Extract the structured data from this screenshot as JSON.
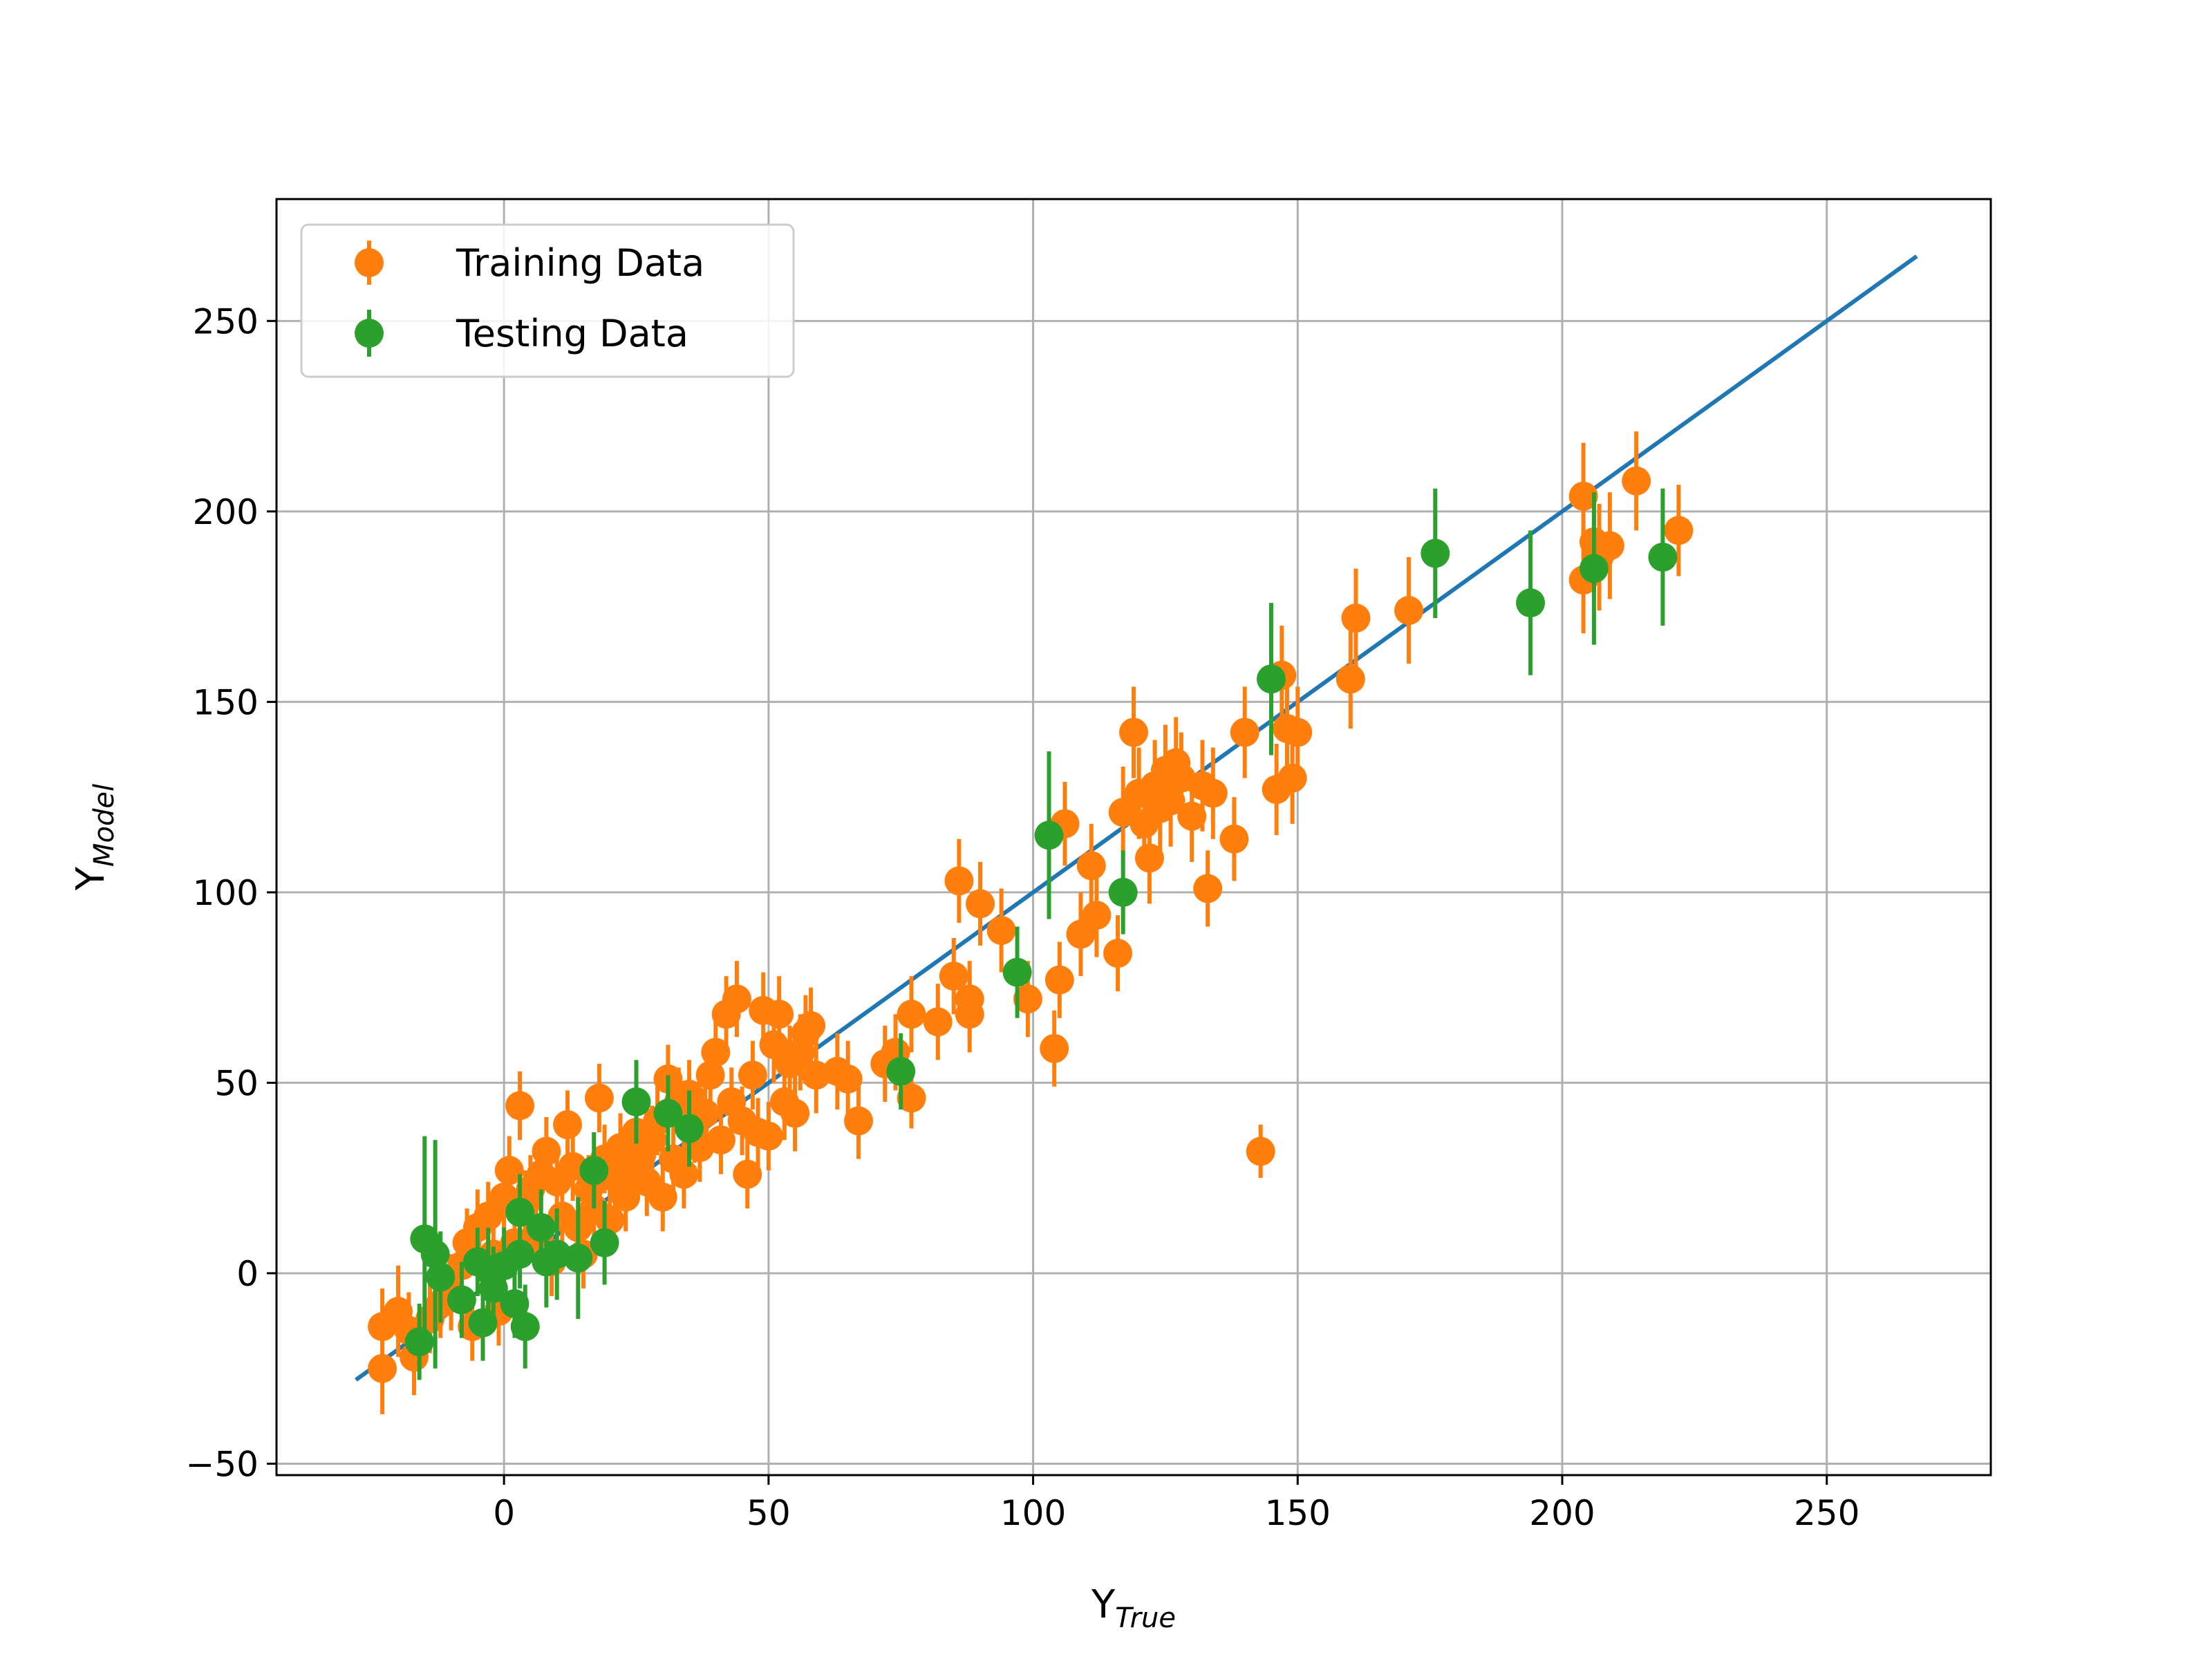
{
  "chart_data": {
    "type": "scatter",
    "title": "",
    "xlabel": {
      "base": "Y",
      "sub": "True"
    },
    "ylabel": {
      "base": "Y",
      "sub": "Model"
    },
    "xlim": [
      -43,
      281
    ],
    "ylim": [
      -53,
      282
    ],
    "xticks": [
      0,
      50,
      100,
      150,
      200,
      250
    ],
    "yticks": [
      -50,
      0,
      50,
      100,
      150,
      200,
      250
    ],
    "xtick_labels": [
      "0",
      "50",
      "100",
      "150",
      "200",
      "250"
    ],
    "ytick_labels": [
      "−50",
      "0",
      "50",
      "100",
      "150",
      "200",
      "250"
    ],
    "grid": true,
    "legend": {
      "placement": "top-left",
      "entries": [
        "Training Data",
        "Testing Data"
      ]
    },
    "reference_line": {
      "x": [
        -28,
        267
      ],
      "y": [
        -28,
        267
      ],
      "color": "#1f77b4"
    },
    "series": [
      {
        "name": "Training Data",
        "color": "#ff7f0e",
        "points": [
          [
            -23,
            -25,
            12
          ],
          [
            -23,
            -14,
            10
          ],
          [
            -20,
            -10,
            12
          ],
          [
            -18,
            -15,
            10
          ],
          [
            -17,
            -22,
            10
          ],
          [
            -14,
            -12,
            9
          ],
          [
            -12,
            -8,
            9
          ],
          [
            -10,
            -5,
            10
          ],
          [
            -8,
            2,
            9
          ],
          [
            -7,
            8,
            9
          ],
          [
            -6,
            -14,
            9
          ],
          [
            -5,
            12,
            10
          ],
          [
            -3,
            15,
            9
          ],
          [
            -2,
            5,
            9
          ],
          [
            -1,
            -10,
            9
          ],
          [
            0,
            20,
            9
          ],
          [
            1,
            27,
            9
          ],
          [
            2,
            8,
            9
          ],
          [
            3,
            44,
            9
          ],
          [
            4,
            18,
            9
          ],
          [
            5,
            22,
            9
          ],
          [
            6,
            10,
            9
          ],
          [
            7,
            26,
            9
          ],
          [
            8,
            32,
            9
          ],
          [
            9,
            3,
            9
          ],
          [
            10,
            24,
            9
          ],
          [
            11,
            15,
            9
          ],
          [
            12,
            39,
            9
          ],
          [
            13,
            28,
            9
          ],
          [
            14,
            12,
            9
          ],
          [
            15,
            5,
            9
          ],
          [
            16,
            22,
            9
          ],
          [
            17,
            17,
            9
          ],
          [
            18,
            46,
            9
          ],
          [
            19,
            30,
            9
          ],
          [
            20,
            14,
            9
          ],
          [
            21,
            25,
            9
          ],
          [
            22,
            33,
            9
          ],
          [
            23,
            20,
            9
          ],
          [
            24,
            28,
            9
          ],
          [
            25,
            37,
            9
          ],
          [
            26,
            31,
            9
          ],
          [
            27,
            24,
            9
          ],
          [
            28,
            35,
            9
          ],
          [
            29,
            40,
            9
          ],
          [
            30,
            20,
            9
          ],
          [
            31,
            51,
            9
          ],
          [
            32,
            30,
            9
          ],
          [
            33,
            45,
            9
          ],
          [
            34,
            26,
            9
          ],
          [
            35,
            47,
            9
          ],
          [
            36,
            38,
            9
          ],
          [
            37,
            33,
            9
          ],
          [
            38,
            42,
            9
          ],
          [
            39,
            52,
            9
          ],
          [
            40,
            58,
            9
          ],
          [
            41,
            35,
            9
          ],
          [
            42,
            68,
            10
          ],
          [
            43,
            45,
            9
          ],
          [
            44,
            72,
            10
          ],
          [
            45,
            40,
            9
          ],
          [
            46,
            26,
            9
          ],
          [
            47,
            52,
            9
          ],
          [
            48,
            37,
            9
          ],
          [
            49,
            69,
            10
          ],
          [
            50,
            36,
            9
          ],
          [
            51,
            60,
            10
          ],
          [
            52,
            68,
            10
          ],
          [
            53,
            45,
            10
          ],
          [
            54,
            55,
            10
          ],
          [
            55,
            42,
            10
          ],
          [
            56,
            58,
            10
          ],
          [
            57,
            63,
            10
          ],
          [
            58,
            65,
            10
          ],
          [
            59,
            52,
            10
          ],
          [
            63,
            53,
            10
          ],
          [
            65,
            51,
            10
          ],
          [
            67,
            40,
            10
          ],
          [
            72,
            55,
            10
          ],
          [
            74,
            58,
            10
          ],
          [
            77,
            68,
            10
          ],
          [
            77,
            46,
            8
          ],
          [
            82,
            66,
            10
          ],
          [
            85,
            78,
            10
          ],
          [
            86,
            103,
            11
          ],
          [
            88,
            72,
            10
          ],
          [
            88,
            68,
            10
          ],
          [
            90,
            97,
            11
          ],
          [
            94,
            90,
            11
          ],
          [
            99,
            72,
            10
          ],
          [
            104,
            59,
            10
          ],
          [
            105,
            77,
            10
          ],
          [
            106,
            118,
            11
          ],
          [
            109,
            89,
            11
          ],
          [
            111,
            107,
            11
          ],
          [
            112,
            94,
            11
          ],
          [
            116,
            84,
            10
          ],
          [
            117,
            121,
            12
          ],
          [
            119,
            142,
            12
          ],
          [
            120,
            126,
            12
          ],
          [
            121,
            118,
            12
          ],
          [
            122,
            109,
            12
          ],
          [
            123,
            128,
            12
          ],
          [
            124,
            122,
            12
          ],
          [
            125,
            132,
            12
          ],
          [
            126,
            124,
            12
          ],
          [
            127,
            134,
            12
          ],
          [
            128,
            130,
            12
          ],
          [
            130,
            120,
            12
          ],
          [
            132,
            128,
            12
          ],
          [
            133,
            101,
            10
          ],
          [
            134,
            126,
            12
          ],
          [
            138,
            114,
            11
          ],
          [
            140,
            142,
            12
          ],
          [
            143,
            32,
            7
          ],
          [
            146,
            127,
            12
          ],
          [
            147,
            157,
            13
          ],
          [
            148,
            143,
            12
          ],
          [
            149,
            130,
            12
          ],
          [
            150,
            142,
            12
          ],
          [
            160,
            156,
            13
          ],
          [
            161,
            172,
            13
          ],
          [
            171,
            174,
            14
          ],
          [
            204,
            182,
            14
          ],
          [
            204,
            204,
            14
          ],
          [
            206,
            192,
            14
          ],
          [
            207,
            188,
            14
          ],
          [
            209,
            191,
            14
          ],
          [
            214,
            208,
            13
          ],
          [
            222,
            195,
            12
          ]
        ]
      },
      {
        "name": "Testing Data",
        "color": "#2ca02c",
        "points": [
          [
            -16,
            -18,
            10
          ],
          [
            -15,
            9,
            27
          ],
          [
            -13,
            5,
            30
          ],
          [
            -12,
            -1,
            12
          ],
          [
            -8,
            -7,
            10
          ],
          [
            -5,
            3,
            9
          ],
          [
            -4,
            -13,
            10
          ],
          [
            -3,
            1,
            11
          ],
          [
            -2,
            -4,
            11
          ],
          [
            0,
            2,
            10
          ],
          [
            2,
            -8,
            9
          ],
          [
            3,
            16,
            10
          ],
          [
            3,
            5,
            9
          ],
          [
            4,
            -14,
            11
          ],
          [
            7,
            12,
            10
          ],
          [
            8,
            3,
            12
          ],
          [
            10,
            5,
            12
          ],
          [
            14,
            4,
            16
          ],
          [
            17,
            27,
            10
          ],
          [
            19,
            8,
            11
          ],
          [
            25,
            45,
            11
          ],
          [
            31,
            42,
            10
          ],
          [
            35,
            38,
            10
          ],
          [
            75,
            53,
            10
          ],
          [
            97,
            79,
            12
          ],
          [
            103,
            115,
            22
          ],
          [
            117,
            100,
            11
          ],
          [
            145,
            156,
            20
          ],
          [
            176,
            189,
            17
          ],
          [
            194,
            176,
            19
          ],
          [
            206,
            185,
            20
          ],
          [
            219,
            188,
            18
          ]
        ]
      }
    ]
  }
}
